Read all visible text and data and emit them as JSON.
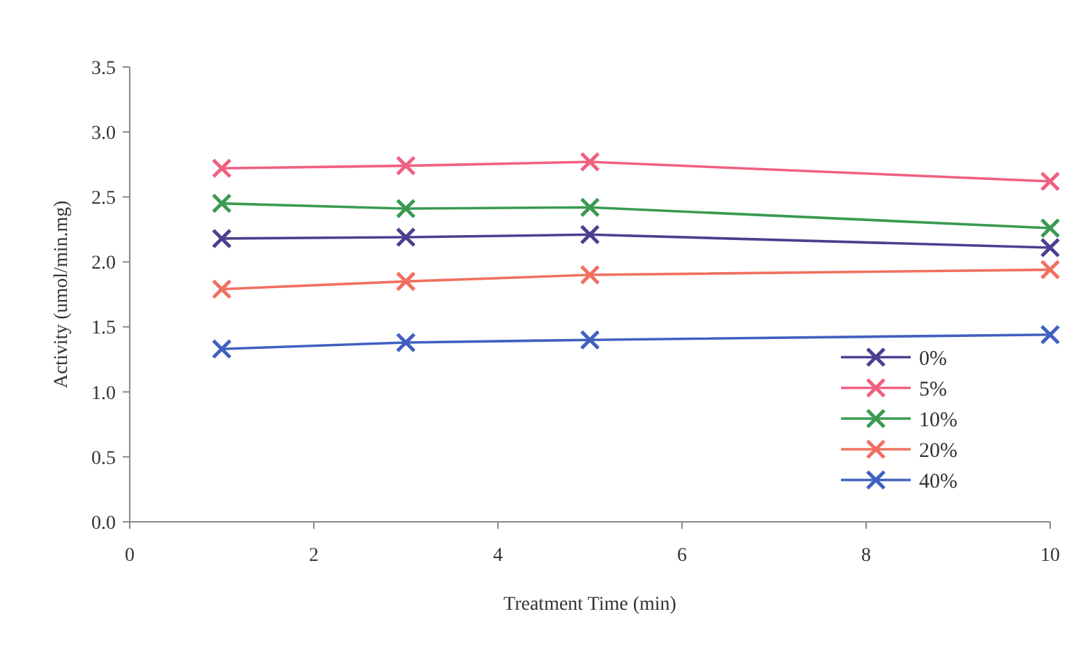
{
  "chart_data": {
    "type": "line",
    "xlabel": "Treatment Time (min)",
    "ylabel": "Activity (umol/min.mg)",
    "x": [
      1,
      3,
      5,
      10
    ],
    "series": [
      {
        "name": "0%",
        "color": "#4b3f8f",
        "values": [
          2.18,
          2.19,
          2.21,
          2.11
        ]
      },
      {
        "name": "5%",
        "color": "#f06080",
        "values": [
          2.72,
          2.74,
          2.77,
          2.62
        ]
      },
      {
        "name": "10%",
        "color": "#3a9a50",
        "values": [
          2.45,
          2.41,
          2.42,
          2.26
        ]
      },
      {
        "name": "20%",
        "color": "#f07060",
        "values": [
          1.79,
          1.85,
          1.9,
          1.94
        ]
      },
      {
        "name": "40%",
        "color": "#4060c0",
        "values": [
          1.33,
          1.38,
          1.4,
          1.44
        ]
      }
    ],
    "xlim": [
      0,
      10
    ],
    "xticks": [
      0,
      2,
      4,
      6,
      8,
      10
    ],
    "ylim": [
      0,
      3.5
    ],
    "yticks": [
      {
        "value": 0,
        "label": "0.0"
      },
      {
        "value": 0.5,
        "label": "0.5"
      },
      {
        "value": 1,
        "label": "1.0"
      },
      {
        "value": 1.5,
        "label": "1.5"
      },
      {
        "value": 2,
        "label": "2.0"
      },
      {
        "value": 2.5,
        "label": "2.5"
      },
      {
        "value": 3,
        "label": "3.0"
      },
      {
        "value": 3.5,
        "label": "3.5"
      }
    ],
    "grid": false,
    "legend": "bottom right",
    "marker": "cross",
    "line_style": "solid"
  }
}
